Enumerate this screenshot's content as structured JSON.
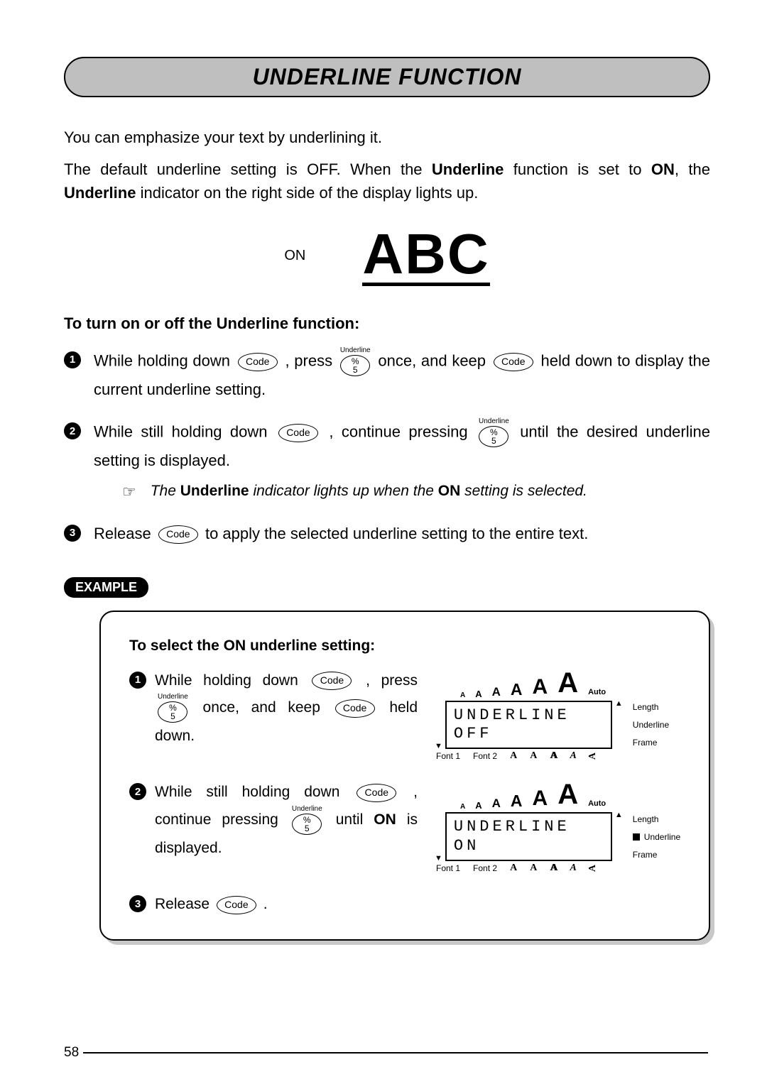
{
  "title": "UNDERLINE FUNCTION",
  "intro": {
    "p1": "You can emphasize your text by underlining it.",
    "p2_a": "The default underline setting is OFF. When the ",
    "p2_b": "Underline",
    "p2_c": " function is set to ",
    "p2_d": "ON",
    "p2_e": ", the ",
    "p2_f": "Underline",
    "p2_g": " indicator on the right side of the display lights up."
  },
  "demo": {
    "label": "ON",
    "text": "ABC"
  },
  "subhead": "To turn on or off the Underline function:",
  "key": {
    "code": "Code",
    "pct": "%",
    "five": "5",
    "ul": "Underline"
  },
  "steps": {
    "s1a": "While holding down ",
    "s1b": " , press ",
    "s1c": " once, and keep ",
    "s1d": " held down to display the current underline setting.",
    "s2a": "While still holding down ",
    "s2b": " , continue pressing ",
    "s2c": " until the desired underline setting is displayed.",
    "note_a": "The ",
    "note_b": "Underline",
    "note_c": " indicator lights up when the ",
    "note_d": "ON",
    "note_e": " setting is selected.",
    "s3a": "Release ",
    "s3b": " to apply the selected underline setting to the entire text."
  },
  "example": {
    "tag": "EXAMPLE",
    "head": "To select the ON underline setting:",
    "r1a": "While holding down ",
    "r1b": " , press ",
    "r1c": " once, and keep ",
    "r1d": " held down.",
    "r2a": "While still holding down ",
    "r2b": " , continue pressing ",
    "r2c": " until ",
    "r2d": "ON",
    "r2e": " is displayed.",
    "r3a": "Release ",
    "r3b": " ."
  },
  "lcd": {
    "auto": "Auto",
    "line1": "UNDERLINE",
    "off": "OFF",
    "on": "ON",
    "side": {
      "length": "Length",
      "underline": "Underline",
      "frame": "Frame"
    },
    "fonts": {
      "f1": "Font 1",
      "f2": "Font 2"
    },
    "A": "A"
  },
  "page": "58"
}
